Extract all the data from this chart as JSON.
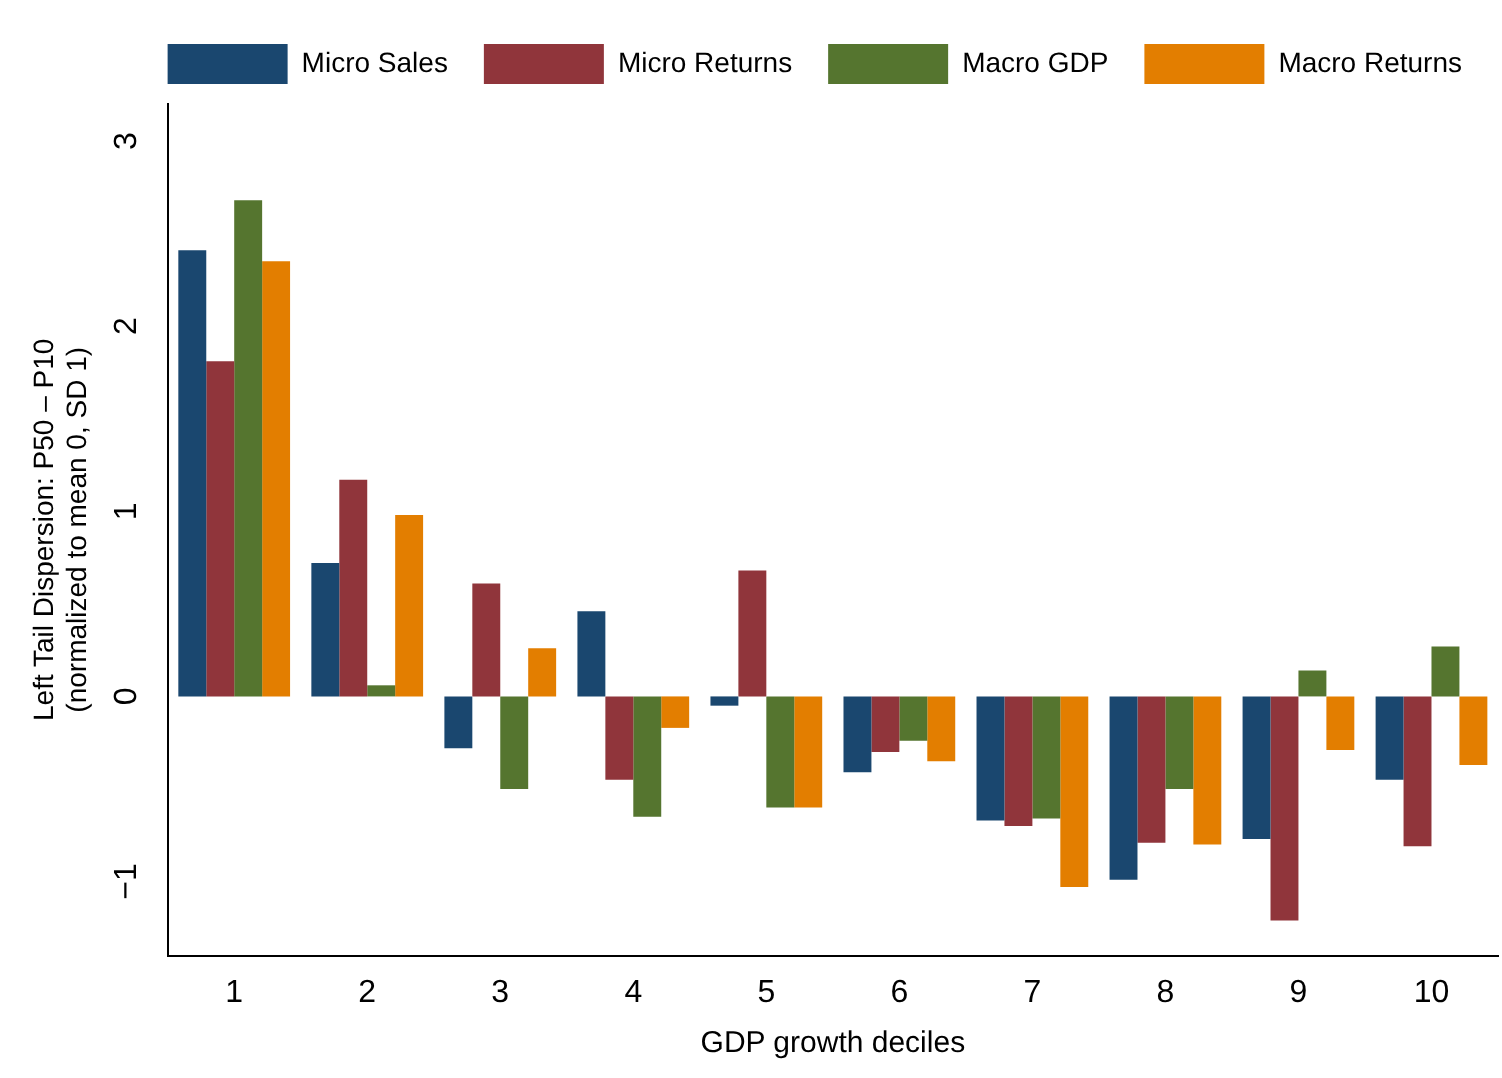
{
  "chart_data": {
    "type": "bar",
    "xlabel": "GDP growth deciles",
    "ylabel": "Left Tail Dispersion: P50 – P10\n(normalized to mean 0, SD 1)",
    "categories": [
      "1",
      "2",
      "3",
      "4",
      "5",
      "6",
      "7",
      "8",
      "9",
      "10"
    ],
    "series": [
      {
        "name": "Micro Sales",
        "color": "#1a476f",
        "values": [
          2.41,
          0.72,
          -0.28,
          0.46,
          -0.05,
          -0.41,
          -0.67,
          -0.99,
          -0.77,
          -0.45
        ]
      },
      {
        "name": "Micro Returns",
        "color": "#90353b",
        "values": [
          1.81,
          1.17,
          0.61,
          -0.45,
          0.68,
          -0.3,
          -0.7,
          -0.79,
          -1.21,
          -0.81
        ]
      },
      {
        "name": "Macro GDP",
        "color": "#55752f",
        "values": [
          2.68,
          0.06,
          -0.5,
          -0.65,
          -0.6,
          -0.24,
          -0.66,
          -0.5,
          0.14,
          0.27
        ]
      },
      {
        "name": "Macro Returns",
        "color": "#e37e00",
        "values": [
          2.35,
          0.98,
          0.26,
          -0.17,
          -0.6,
          -0.35,
          -1.03,
          -0.8,
          -0.29,
          -0.37
        ]
      }
    ],
    "ylim": [
      -1.4,
      3.2
    ],
    "yticks": [
      -1,
      0,
      1,
      2,
      3
    ],
    "grid": false,
    "legend": "top right"
  }
}
